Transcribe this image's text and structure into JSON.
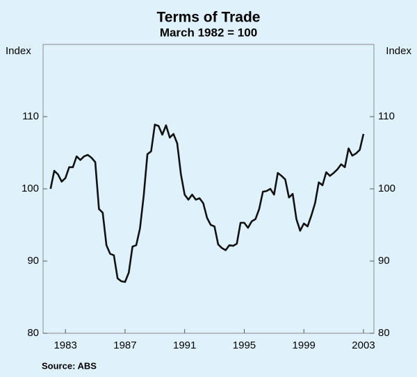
{
  "chart_data": {
    "type": "line",
    "title": "Terms of Trade",
    "subtitle": "March 1982 = 100",
    "ylabel": "Index",
    "y2label": "Index",
    "source": "Source: ABS",
    "x": [
      1982,
      1982.25,
      1982.5,
      1982.75,
      1983,
      1983.25,
      1983.5,
      1983.75,
      1984,
      1984.25,
      1984.5,
      1984.75,
      1985,
      1985.25,
      1985.5,
      1985.75,
      1986,
      1986.25,
      1986.5,
      1986.75,
      1987,
      1987.25,
      1987.5,
      1987.75,
      1988,
      1988.25,
      1988.5,
      1988.75,
      1989,
      1989.25,
      1989.5,
      1989.75,
      1990,
      1990.25,
      1990.5,
      1990.75,
      1991,
      1991.25,
      1991.5,
      1991.75,
      1992,
      1992.25,
      1992.5,
      1992.75,
      1993,
      1993.25,
      1993.5,
      1993.75,
      1994,
      1994.25,
      1994.5,
      1994.75,
      1995,
      1995.25,
      1995.5,
      1995.75,
      1996,
      1996.25,
      1996.5,
      1996.75,
      1997,
      1997.25,
      1997.5,
      1997.75,
      1998,
      1998.25,
      1998.5,
      1998.75,
      1999,
      1999.25,
      1999.5,
      1999.75,
      2000,
      2000.25,
      2000.5,
      2000.75,
      2001,
      2001.25,
      2001.5,
      2001.75,
      2002,
      2002.25,
      2002.5,
      2002.75,
      2003
    ],
    "series": [
      {
        "name": "Terms of Trade",
        "color": "#111111",
        "values": [
          100,
          102.5,
          102,
          101,
          101.5,
          103,
          103,
          104.5,
          104,
          104.5,
          104.7,
          104.3,
          103.7,
          97.2,
          96.7,
          92.2,
          91,
          90.8,
          87.6,
          87.2,
          87.1,
          88.4,
          92,
          92.2,
          94.5,
          99,
          104.8,
          105.2,
          108.9,
          108.7,
          107.5,
          108.8,
          107.1,
          107.6,
          106.3,
          102,
          99.2,
          98.5,
          99.2,
          98.5,
          98.7,
          98,
          96,
          95,
          94.8,
          92.3,
          91.8,
          91.5,
          92.2,
          92.1,
          92.4,
          95.3,
          95.3,
          94.6,
          95.5,
          95.8,
          97.2,
          99.6,
          99.7,
          100,
          99.2,
          102.2,
          101.8,
          101.3,
          98.8,
          99.3,
          95.8,
          94.2,
          95.2,
          94.8,
          96.3,
          98,
          100.9,
          100.5,
          102.3,
          101.8,
          102.2,
          102.7,
          103.4,
          103,
          105.6,
          104.6,
          104.9,
          105.4,
          107.6
        ]
      }
    ],
    "xlim": [
      1981.5,
      2003.7
    ],
    "xticks": [
      1983,
      1987,
      1991,
      1995,
      1999,
      2003
    ],
    "ylim": [
      80,
      120
    ],
    "yticks": [
      80,
      90,
      100,
      110
    ]
  }
}
